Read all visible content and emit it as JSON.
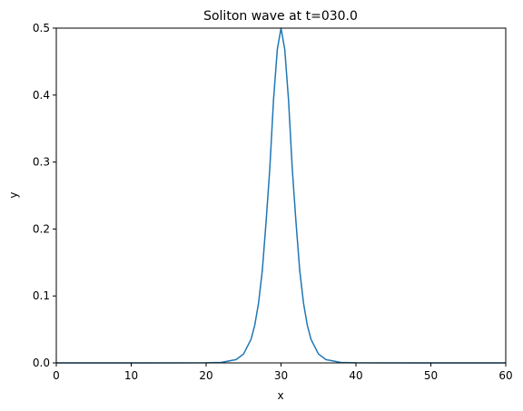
{
  "chart_data": {
    "type": "line",
    "title": "Soliton wave at t=030.0",
    "xlabel": "x",
    "ylabel": "y",
    "xlim": [
      0,
      60
    ],
    "ylim": [
      0,
      0.5
    ],
    "xticks": [
      0,
      10,
      20,
      30,
      40,
      50,
      60
    ],
    "xtick_labels": [
      "0",
      "10",
      "20",
      "30",
      "40",
      "50",
      "60"
    ],
    "yticks": [
      0.0,
      0.1,
      0.2,
      0.3,
      0.4,
      0.5
    ],
    "ytick_labels": [
      "0.0",
      "0.1",
      "0.2",
      "0.3",
      "0.4",
      "0.5"
    ],
    "grid": false,
    "line_color": "#1f77b4",
    "series": [
      {
        "x": [
          0,
          10,
          20,
          22,
          24,
          25,
          26,
          26.5,
          27,
          27.5,
          28,
          28.5,
          29,
          29.5,
          30,
          30.5,
          31,
          31.5,
          32,
          32.5,
          33,
          33.5,
          34,
          35,
          36,
          38,
          40,
          50,
          60
        ],
        "y": [
          0,
          0,
          0.0001,
          0.0007,
          0.0049,
          0.0133,
          0.0353,
          0.0567,
          0.0895,
          0.1375,
          0.21,
          0.29,
          0.393,
          0.468,
          0.5,
          0.468,
          0.393,
          0.29,
          0.21,
          0.1375,
          0.0895,
          0.0567,
          0.0353,
          0.0133,
          0.0049,
          0.0007,
          0.0001,
          0,
          0
        ]
      }
    ]
  }
}
